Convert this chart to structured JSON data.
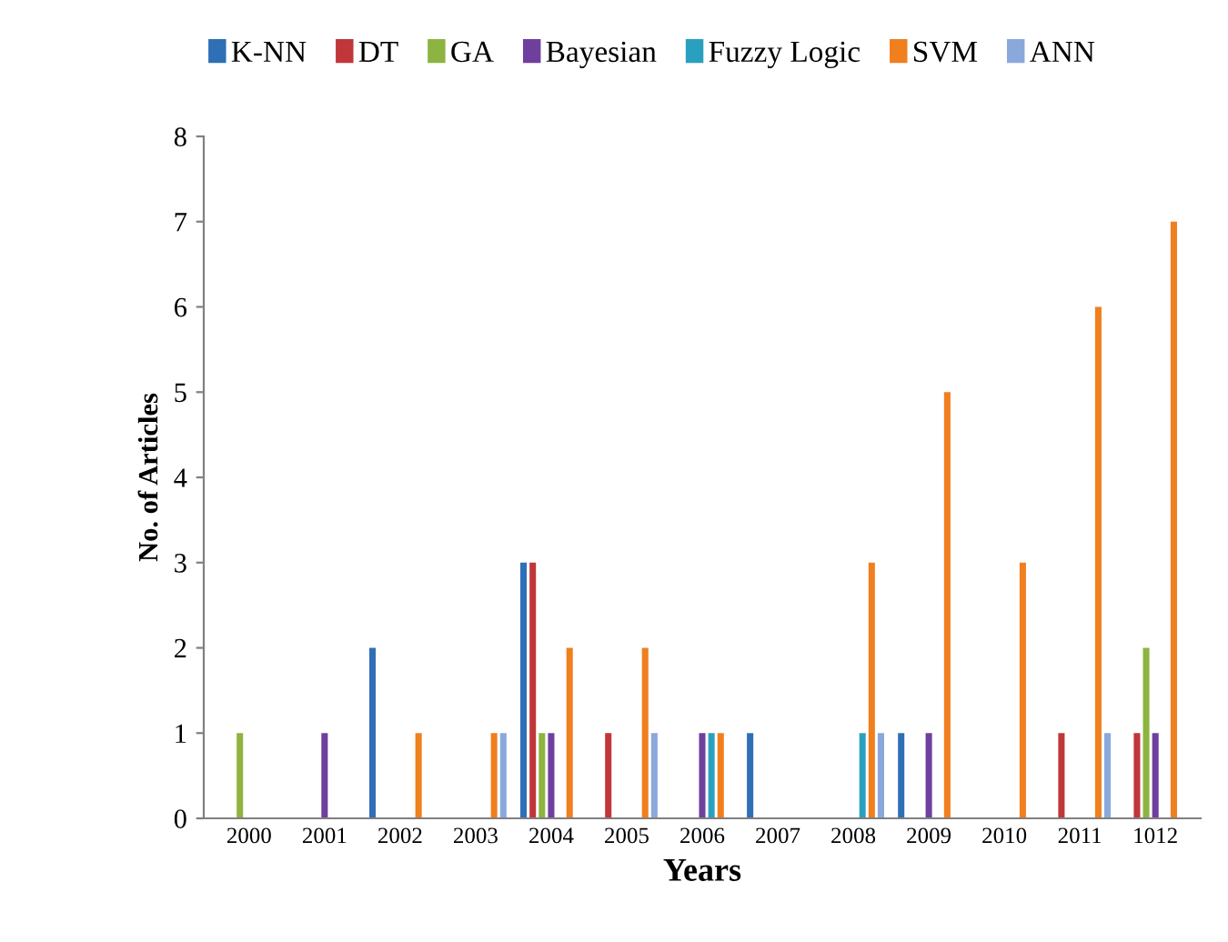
{
  "chart_data": {
    "type": "bar",
    "xlabel": "Years",
    "ylabel": "No. of Articles",
    "categories": [
      "2000",
      "2001",
      "2002",
      "2003",
      "2004",
      "2005",
      "2006",
      "2007",
      "2008",
      "2009",
      "2010",
      "2011",
      "1012"
    ],
    "series": [
      {
        "name": "K-NN",
        "color": "#2e6fb5",
        "values": [
          0,
          0,
          2,
          0,
          3,
          0,
          0,
          1,
          0,
          1,
          0,
          0,
          0
        ]
      },
      {
        "name": "DT",
        "color": "#c0363a",
        "values": [
          0,
          0,
          0,
          0,
          3,
          1,
          0,
          0,
          0,
          0,
          0,
          1,
          1
        ]
      },
      {
        "name": "GA",
        "color": "#8db440",
        "values": [
          1,
          0,
          0,
          0,
          1,
          0,
          0,
          0,
          0,
          0,
          0,
          0,
          2
        ]
      },
      {
        "name": "Bayesian",
        "color": "#6f3f9e",
        "values": [
          0,
          1,
          0,
          0,
          1,
          0,
          1,
          0,
          0,
          1,
          0,
          0,
          1
        ]
      },
      {
        "name": "Fuzzy Logic",
        "color": "#2aa0c0",
        "values": [
          0,
          0,
          0,
          0,
          0,
          0,
          1,
          0,
          1,
          0,
          0,
          0,
          0
        ]
      },
      {
        "name": "SVM",
        "color": "#f07f1e",
        "values": [
          0,
          0,
          1,
          1,
          2,
          2,
          1,
          0,
          3,
          5,
          3,
          6,
          7
        ]
      },
      {
        "name": "ANN",
        "color": "#8aa8dc",
        "values": [
          0,
          0,
          0,
          1,
          0,
          1,
          0,
          0,
          1,
          0,
          0,
          1,
          0
        ]
      }
    ],
    "ylim": [
      0,
      8
    ],
    "yticks": [
      0,
      1,
      2,
      3,
      4,
      5,
      6,
      7,
      8
    ],
    "grid": false,
    "legend": "top"
  }
}
